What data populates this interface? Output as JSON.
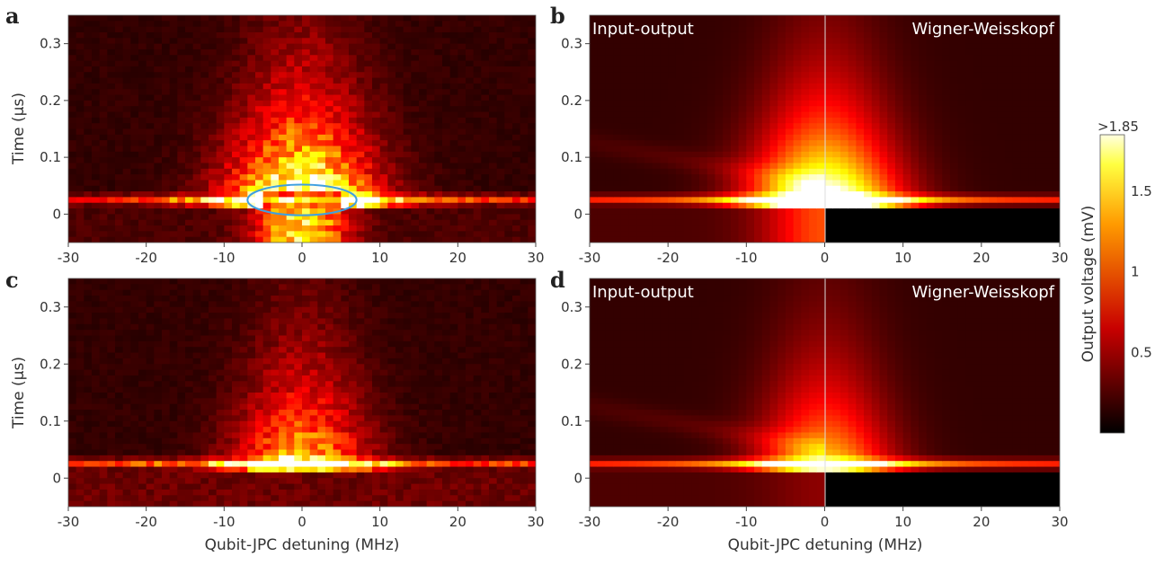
{
  "chart_data": [
    {
      "panel": "a",
      "type": "heatmap",
      "title": "",
      "xlabel": "",
      "ylabel": "Time (µs)",
      "xlim": [
        -30,
        30
      ],
      "ylim": [
        -0.05,
        0.35
      ],
      "xticks": [
        "-30",
        "-20",
        "-10",
        "0",
        "10",
        "20",
        "30"
      ],
      "yticks": [
        "0",
        "0.1",
        "0.2",
        "0.3"
      ],
      "annotation": {
        "shape": "ellipse",
        "color": "#3fa0e0",
        "center_x_mhz": 0,
        "center_y_us": 0.025,
        "rx_mhz": 7,
        "ry_us": 0.027
      },
      "labels": {}
    },
    {
      "panel": "b",
      "type": "heatmap",
      "title": "",
      "xlabel": "",
      "ylabel": "",
      "xlim": [
        -30,
        30
      ],
      "ylim": [
        -0.05,
        0.35
      ],
      "xticks": [
        "-30",
        "-20",
        "-10",
        "0",
        "10",
        "20",
        "30"
      ],
      "yticks": [
        "0",
        "0.1",
        "0.2",
        "0.3"
      ],
      "labels": {
        "left": "Input-output",
        "right": "Wigner-Weisskopf"
      }
    },
    {
      "panel": "c",
      "type": "heatmap",
      "title": "",
      "xlabel": "Qubit-JPC detuning (MHz)",
      "ylabel": "Time (µs)",
      "xlim": [
        -30,
        30
      ],
      "ylim": [
        -0.05,
        0.35
      ],
      "xticks": [
        "-30",
        "-20",
        "-10",
        "0",
        "10",
        "20",
        "30"
      ],
      "yticks": [
        "0",
        "0.1",
        "0.2",
        "0.3"
      ],
      "labels": {}
    },
    {
      "panel": "d",
      "type": "heatmap",
      "title": "",
      "xlabel": "Qubit-JPC detuning (MHz)",
      "ylabel": "",
      "xlim": [
        -30,
        30
      ],
      "ylim": [
        -0.05,
        0.35
      ],
      "xticks": [
        "-30",
        "-20",
        "-10",
        "0",
        "10",
        "20",
        "30"
      ],
      "yticks": [
        "0",
        "0.1",
        "0.2",
        "0.3"
      ],
      "labels": {
        "left": "Input-output",
        "right": "Wigner-Weisskopf"
      }
    }
  ],
  "colorbar": {
    "label": "Output voltage (mV)",
    "range": [
      0,
      1.85
    ],
    "ticks": [
      "0.5",
      "1",
      "1.5"
    ],
    "top_label": ">1.85",
    "colormap": "hot"
  }
}
